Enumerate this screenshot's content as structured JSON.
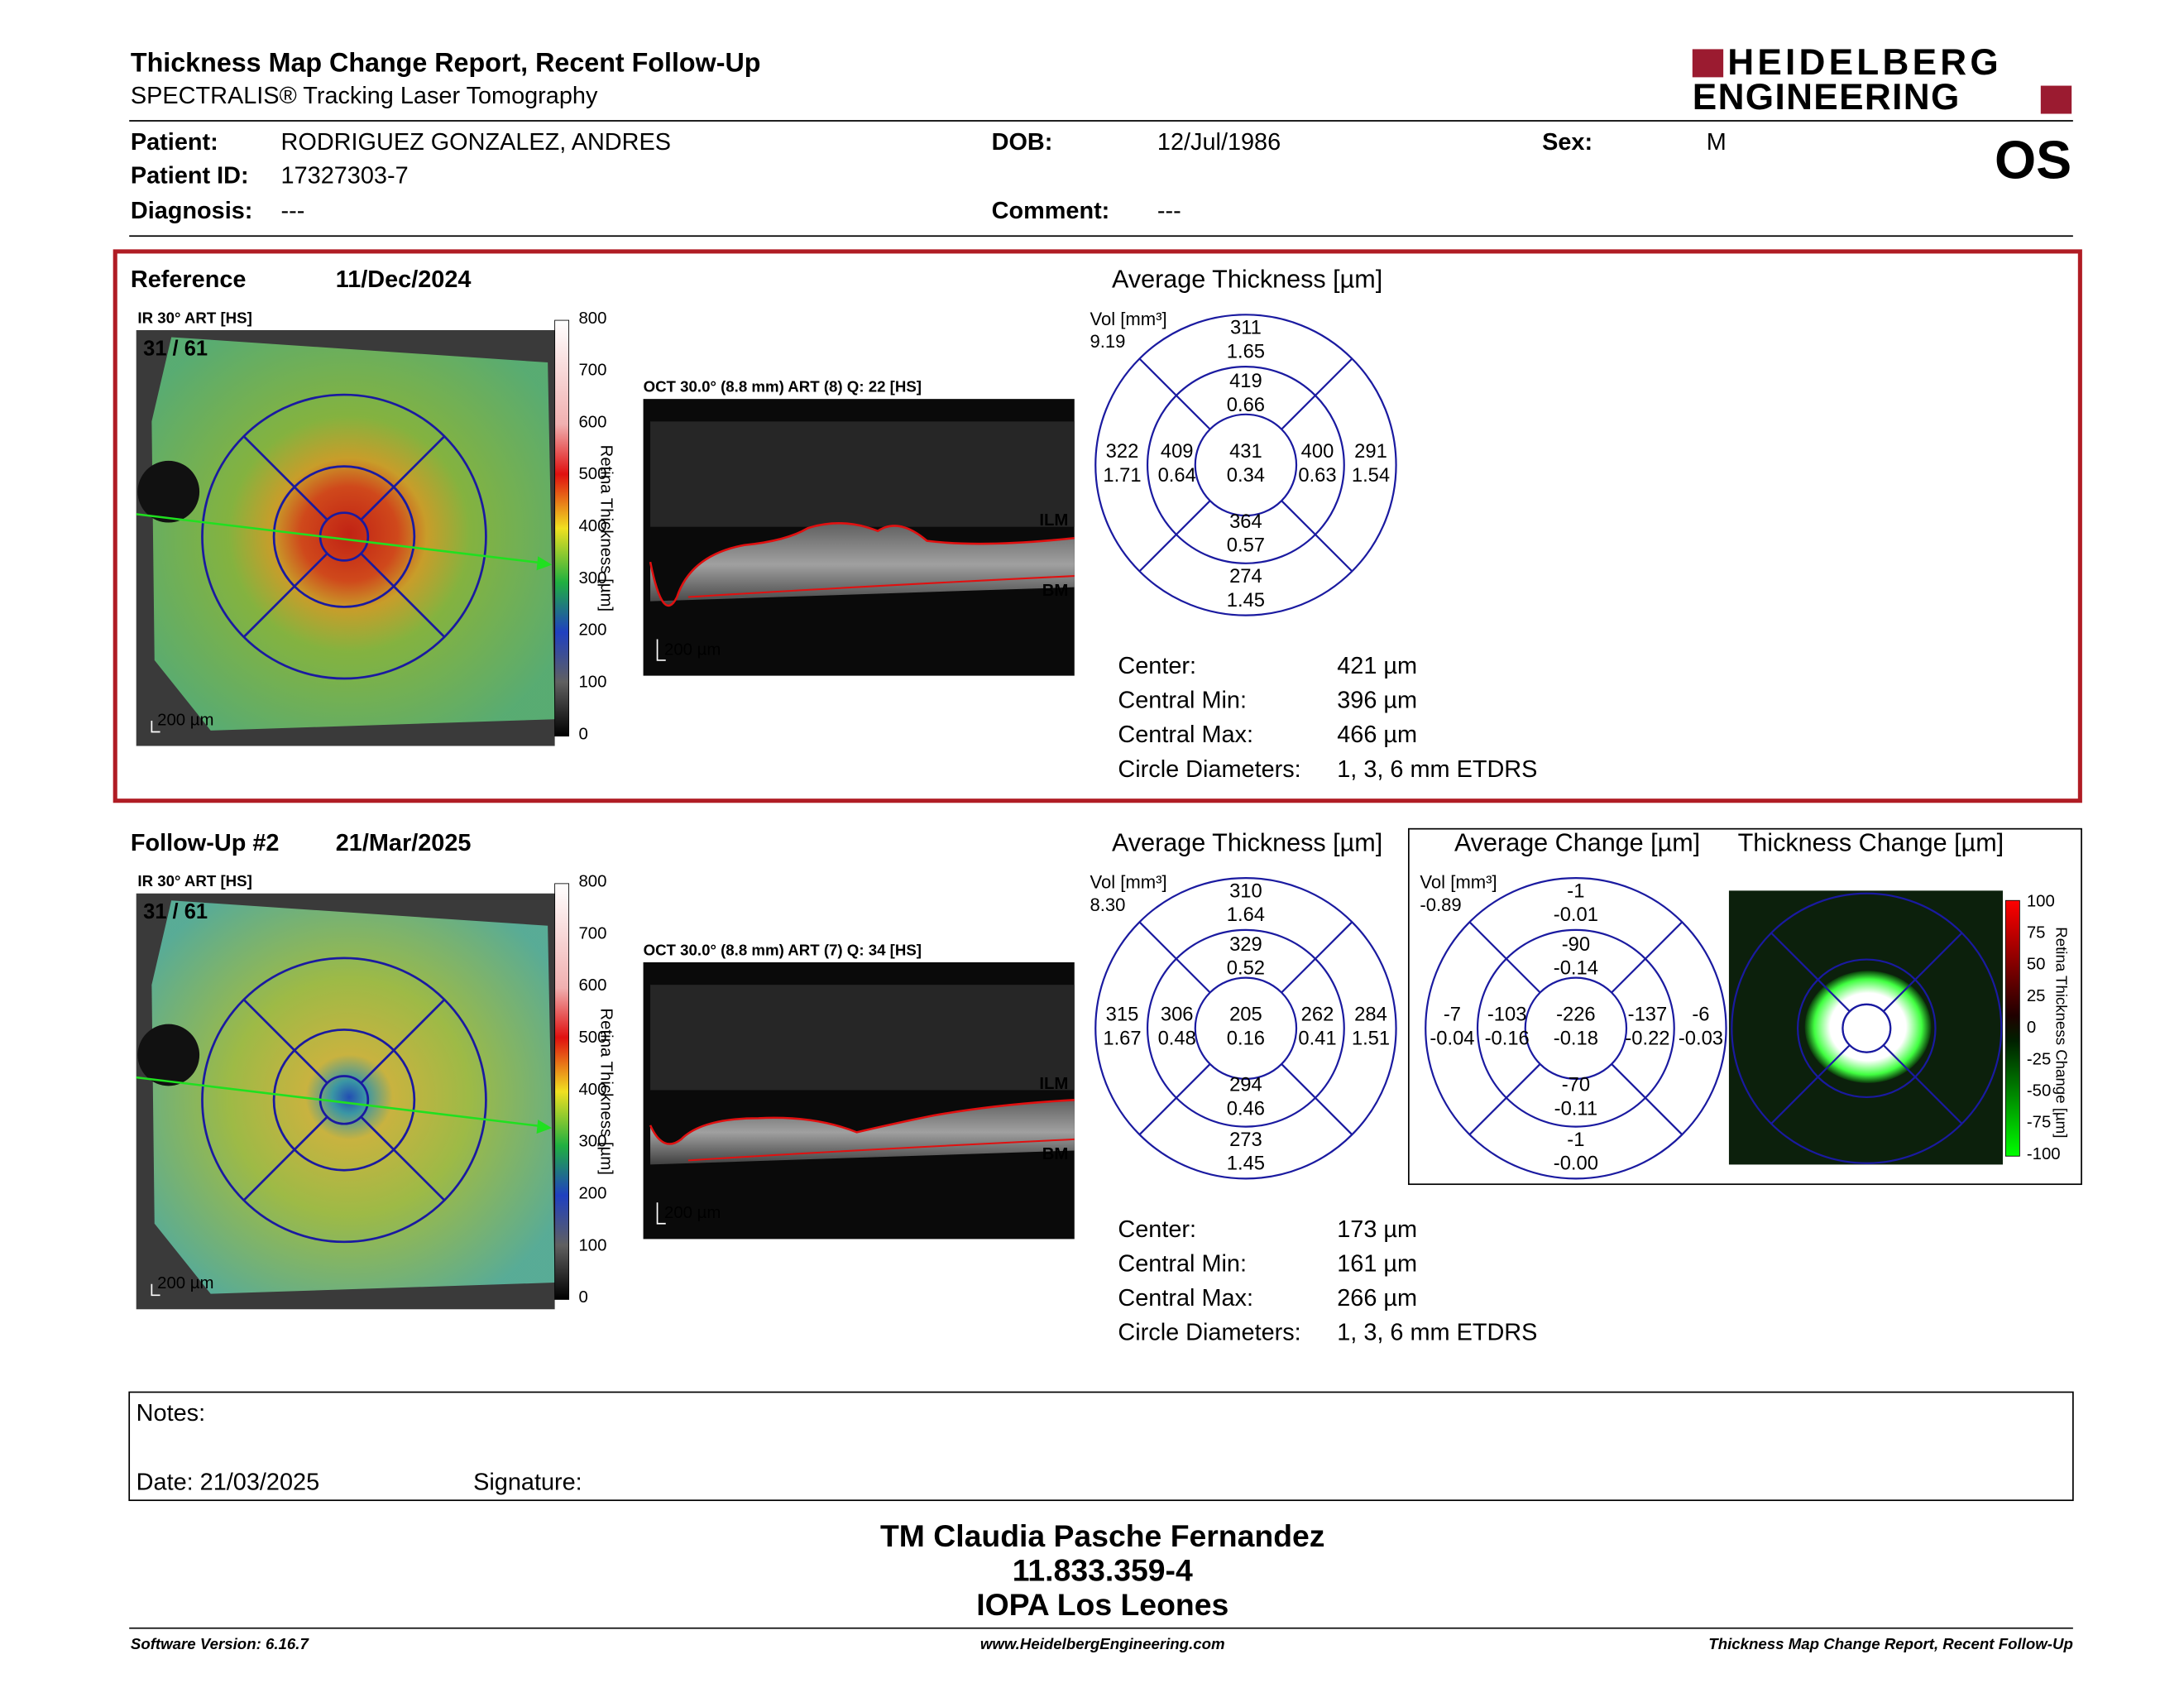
{
  "header": {
    "title": "Thickness Map Change Report, Recent Follow-Up",
    "subtitle": "SPECTRALIS® Tracking Laser Tomography",
    "logo_line1": "HEIDELBERG",
    "logo_line2": "ENGINEERING",
    "eye": "OS"
  },
  "patient": {
    "fields": [
      {
        "label": "Patient:",
        "value": "RODRIGUEZ GONZALEZ, ANDRES"
      },
      {
        "label": "Patient ID:",
        "value": "17327303-7"
      },
      {
        "label": "Diagnosis:",
        "value": "---"
      },
      {
        "label": "DOB:",
        "value": "12/Jul/1986"
      },
      {
        "label": "Comment:",
        "value": "---"
      },
      {
        "label": "Sex:",
        "value": "M"
      }
    ]
  },
  "exams": [
    {
      "label": "Reference",
      "date": "11/Dec/2024",
      "ir_label": "IR 30° ART [HS]",
      "frame": "31 / 61",
      "colorbar_title": "Retina Thickness [µm]",
      "colorbar_ticks": [
        "800",
        "700",
        "600",
        "500",
        "400",
        "300",
        "200",
        "100",
        "0"
      ],
      "scale_bar": "200 µm",
      "oct_label": "OCT 30.0° (8.8 mm) ART (8) Q: 22 [HS]",
      "oct_layers": [
        "ILM",
        "BM"
      ],
      "oct_scale_bar": "200 µm",
      "grid_title": "Average Thickness [µm]",
      "volume_label": "Vol [mm³]",
      "total_volume": "9.19",
      "sectors": [
        {
          "thickness": "311",
          "volume": "1.65"
        },
        {
          "thickness": "419",
          "volume": "0.66"
        },
        {
          "thickness": "322",
          "volume": "1.71"
        },
        {
          "thickness": "409",
          "volume": "0.64"
        },
        {
          "thickness": "431",
          "volume": "0.34"
        },
        {
          "thickness": "400",
          "volume": "0.63"
        },
        {
          "thickness": "291",
          "volume": "1.54"
        },
        {
          "thickness": "364",
          "volume": "0.57"
        },
        {
          "thickness": "274",
          "volume": "1.45"
        }
      ],
      "stats": [
        {
          "label": "Center:",
          "value": "421 µm"
        },
        {
          "label": "Central Min:",
          "value": "396 µm"
        },
        {
          "label": "Central Max:",
          "value": "466 µm"
        },
        {
          "label": "Circle Diameters:",
          "value": "1, 3, 6 mm ETDRS"
        }
      ]
    },
    {
      "label": "Follow-Up #2",
      "date": "21/Mar/2025",
      "ir_label": "IR 30° ART [HS]",
      "frame": "31 / 61",
      "colorbar_title": "Retina Thickness [µm]",
      "colorbar_ticks": [
        "800",
        "700",
        "600",
        "500",
        "400",
        "300",
        "200",
        "100",
        "0"
      ],
      "scale_bar": "200 µm",
      "oct_label": "OCT 30.0° (8.8 mm) ART (7) Q: 34 [HS]",
      "oct_layers": [
        "ILM",
        "BM"
      ],
      "oct_scale_bar": "200 µm",
      "grid_title": "Average Thickness [µm]",
      "volume_label": "Vol [mm³]",
      "total_volume": "8.30",
      "sectors": [
        {
          "thickness": "310",
          "volume": "1.64"
        },
        {
          "thickness": "329",
          "volume": "0.52"
        },
        {
          "thickness": "315",
          "volume": "1.67"
        },
        {
          "thickness": "306",
          "volume": "0.48"
        },
        {
          "thickness": "205",
          "volume": "0.16"
        },
        {
          "thickness": "262",
          "volume": "0.41"
        },
        {
          "thickness": "284",
          "volume": "1.51"
        },
        {
          "thickness": "294",
          "volume": "0.46"
        },
        {
          "thickness": "273",
          "volume": "1.45"
        }
      ],
      "stats": [
        {
          "label": "Center:",
          "value": "173 µm"
        },
        {
          "label": "Central Min:",
          "value": "161 µm"
        },
        {
          "label": "Central Max:",
          "value": "266 µm"
        },
        {
          "label": "Circle Diameters:",
          "value": "1, 3, 6 mm ETDRS"
        }
      ]
    }
  ],
  "change": {
    "grid_title": "Average Change [µm]",
    "volume_label": "Vol [mm³]",
    "total_volume": "-0.89",
    "sectors": [
      {
        "thickness": "-1",
        "volume": "-0.01"
      },
      {
        "thickness": "-90",
        "volume": "-0.14"
      },
      {
        "thickness": "-7",
        "volume": "-0.04"
      },
      {
        "thickness": "-103",
        "volume": "-0.16"
      },
      {
        "thickness": "-226",
        "volume": "-0.18"
      },
      {
        "thickness": "-137",
        "volume": "-0.22"
      },
      {
        "thickness": "-6",
        "volume": "-0.03"
      },
      {
        "thickness": "-70",
        "volume": "-0.11"
      },
      {
        "thickness": "-1",
        "volume": "-0.00"
      }
    ],
    "map_title": "Thickness Change [µm]",
    "colorbar_title": "Retina Thickness Change [µm]",
    "colorbar_ticks": [
      "100",
      "75",
      "50",
      "25",
      "0",
      "-25",
      "-50",
      "-75",
      "-100"
    ]
  },
  "notes": {
    "label": "Notes:",
    "date": "Date: 21/03/2025",
    "signature": "Signature:"
  },
  "signature_block": [
    "TM Claudia Pasche Fernandez",
    "11.833.359-4",
    "IOPA Los Leones"
  ],
  "footer": {
    "left": "Software Version: 6.16.7",
    "center": "www.HeidelbergEngineering.com",
    "right": "Thickness Map Change Report, Recent Follow-Up"
  }
}
